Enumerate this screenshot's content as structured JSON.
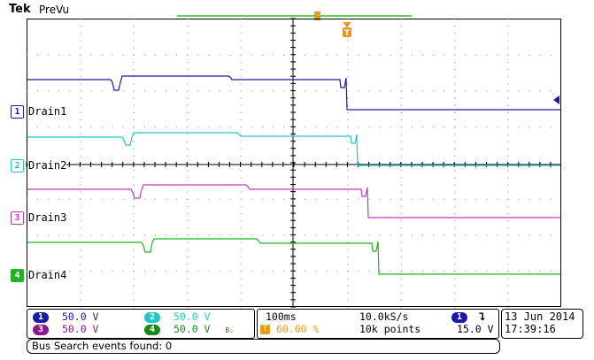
{
  "header": {
    "brand": "Tek",
    "mode": "PreVu"
  },
  "channels": [
    {
      "id": "1",
      "name": "Drain1",
      "color": "#1a1aa8",
      "scale": "50.0 V"
    },
    {
      "id": "2",
      "name": "Drain2",
      "color": "#22c6cc",
      "scale": "50.0 V"
    },
    {
      "id": "3",
      "name": "Drain3",
      "color": "#c437c4",
      "scale": "50.0 V"
    },
    {
      "id": "4",
      "name": "Drain4",
      "color": "#22b322",
      "scale": "50.0 V"
    }
  ],
  "bandwidth_badge": "Bᵥ",
  "trigger_badge": "T",
  "timebase": {
    "time_div": "100ms",
    "trigger_position": "60.00 %",
    "sample_rate": "10.0kS/s",
    "record_length": "10k points",
    "trigger_channel": "1",
    "trigger_slope": "⮧",
    "trigger_level": "15.0 V"
  },
  "datetime": {
    "date": "13 Jun  2014",
    "time": "17:39:16"
  },
  "bus_search": "Bus Search events found: 0"
}
